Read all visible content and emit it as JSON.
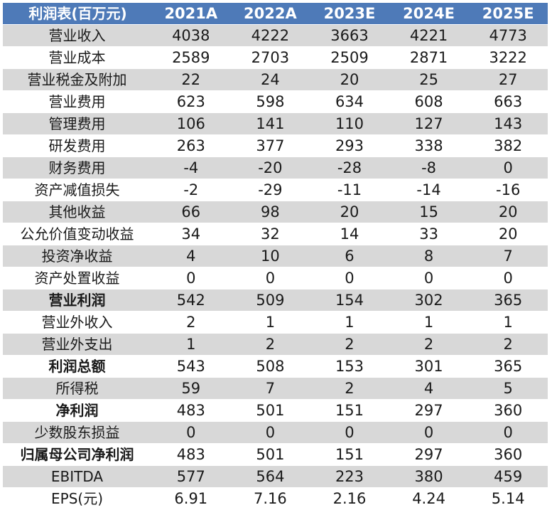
{
  "table": {
    "corner_label": "利润表(百万元)",
    "columns": [
      "2021A",
      "2022A",
      "2023E",
      "2024E",
      "2025E"
    ],
    "rows": [
      {
        "label": "营业收入",
        "values": [
          "4038",
          "4222",
          "3663",
          "4221",
          "4773"
        ],
        "bold": false
      },
      {
        "label": "营业成本",
        "values": [
          "2589",
          "2703",
          "2509",
          "2871",
          "3222"
        ],
        "bold": false
      },
      {
        "label": "营业税金及附加",
        "values": [
          "22",
          "24",
          "20",
          "25",
          "27"
        ],
        "bold": false
      },
      {
        "label": "营业费用",
        "values": [
          "623",
          "598",
          "634",
          "608",
          "663"
        ],
        "bold": false
      },
      {
        "label": "管理费用",
        "values": [
          "106",
          "141",
          "110",
          "127",
          "143"
        ],
        "bold": false
      },
      {
        "label": "研发费用",
        "values": [
          "263",
          "377",
          "293",
          "338",
          "382"
        ],
        "bold": false
      },
      {
        "label": "财务费用",
        "values": [
          "-4",
          "-20",
          "-28",
          "-8",
          "0"
        ],
        "bold": false
      },
      {
        "label": "资产减值损失",
        "values": [
          "-2",
          "-29",
          "-11",
          "-14",
          "-16"
        ],
        "bold": false
      },
      {
        "label": "其他收益",
        "values": [
          "66",
          "98",
          "20",
          "15",
          "20"
        ],
        "bold": false
      },
      {
        "label": "公允价值变动收益",
        "values": [
          "34",
          "32",
          "14",
          "33",
          "20"
        ],
        "bold": false
      },
      {
        "label": "投资净收益",
        "values": [
          "4",
          "10",
          "6",
          "8",
          "7"
        ],
        "bold": false
      },
      {
        "label": "资产处置收益",
        "values": [
          "0",
          "0",
          "0",
          "0",
          "0"
        ],
        "bold": false
      },
      {
        "label": "营业利润",
        "values": [
          "542",
          "509",
          "154",
          "302",
          "365"
        ],
        "bold": true
      },
      {
        "label": "营业外收入",
        "values": [
          "2",
          "1",
          "1",
          "1",
          "1"
        ],
        "bold": false
      },
      {
        "label": "营业外支出",
        "values": [
          "1",
          "2",
          "2",
          "2",
          "2"
        ],
        "bold": false
      },
      {
        "label": "利润总额",
        "values": [
          "543",
          "508",
          "153",
          "301",
          "365"
        ],
        "bold": true
      },
      {
        "label": "所得税",
        "values": [
          "59",
          "7",
          "2",
          "4",
          "5"
        ],
        "bold": false
      },
      {
        "label": "净利润",
        "values": [
          "483",
          "501",
          "151",
          "297",
          "360"
        ],
        "bold": true
      },
      {
        "label": "少数股东损益",
        "values": [
          "0",
          "0",
          "0",
          "0",
          "0"
        ],
        "bold": false
      },
      {
        "label": "归属母公司净利润",
        "values": [
          "483",
          "501",
          "151",
          "297",
          "360"
        ],
        "bold": true
      },
      {
        "label": "EBITDA",
        "values": [
          "577",
          "564",
          "223",
          "380",
          "459"
        ],
        "bold": false
      },
      {
        "label": "EPS(元)",
        "values": [
          "6.91",
          "7.16",
          "2.16",
          "4.24",
          "5.14"
        ],
        "bold": false
      }
    ]
  },
  "colors": {
    "header_bg": "#4e7ab8",
    "header_text": "#ffffff",
    "band_bg": "#d8d8d8",
    "plain_bg": "#ffffff",
    "body_text": "#1a1a1a"
  }
}
